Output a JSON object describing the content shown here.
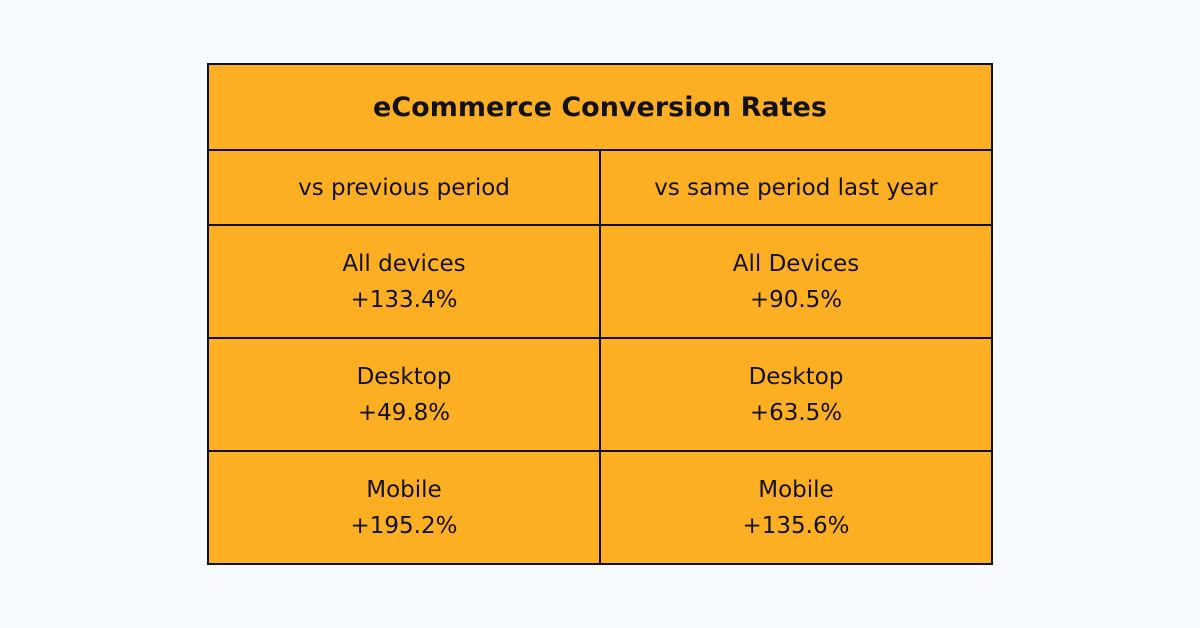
{
  "title": "eCommerce Conversion Rates",
  "columns": [
    "vs previous period",
    "vs same period last year"
  ],
  "rows": [
    [
      {
        "label": "All devices",
        "value": "+133.4%"
      },
      {
        "label": "All Devices",
        "value": "+90.5%"
      }
    ],
    [
      {
        "label": "Desktop",
        "value": "+49.8%"
      },
      {
        "label": "Desktop",
        "value": "+63.5%"
      }
    ],
    [
      {
        "label": "Mobile",
        "value": "+195.2%"
      },
      {
        "label": "Mobile",
        "value": "+135.6%"
      }
    ]
  ],
  "colors": {
    "background": "#f7fbfe",
    "table_fill": "#fdaf24",
    "border": "#111111"
  }
}
